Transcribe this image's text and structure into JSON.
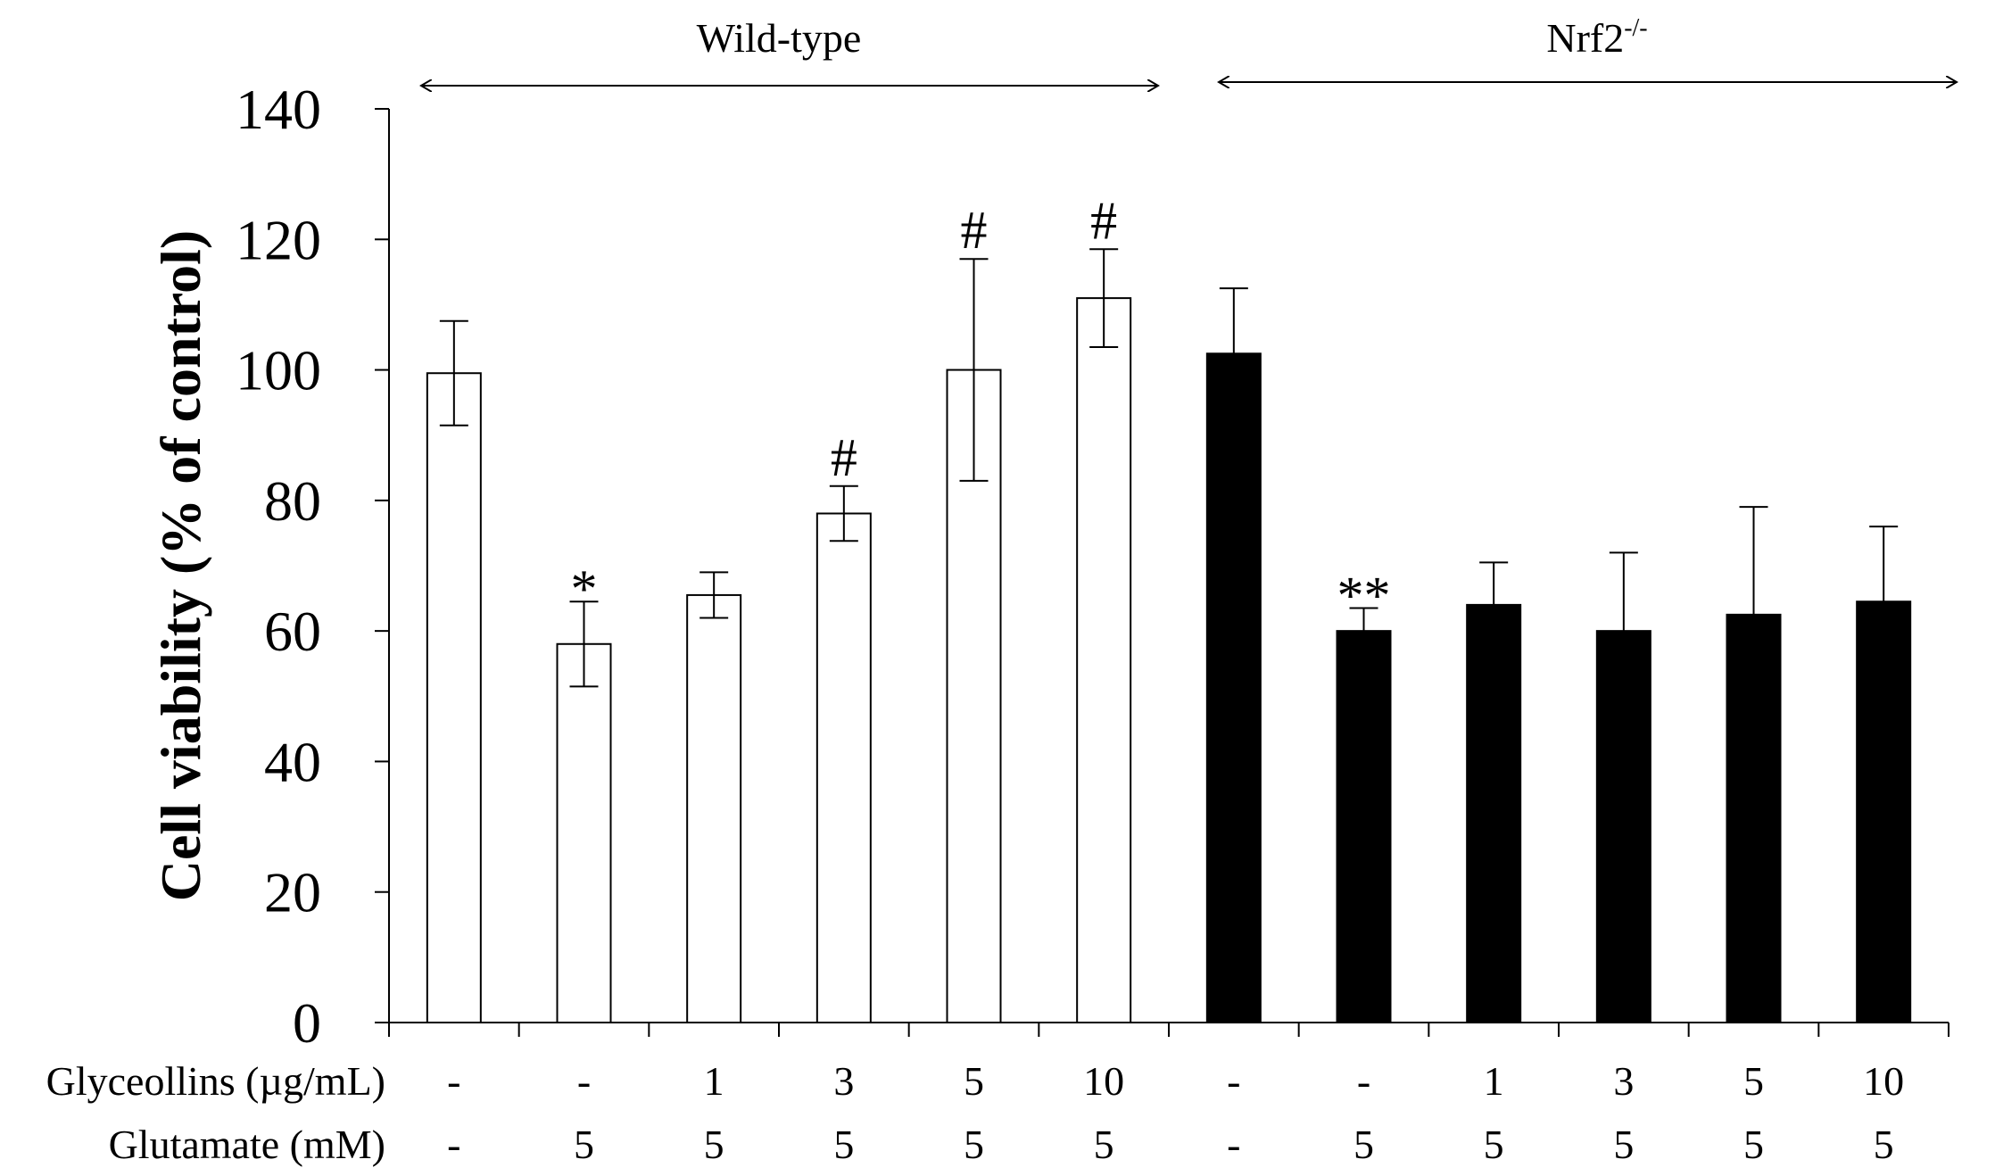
{
  "chart_data": {
    "type": "bar",
    "title": "",
    "xlabel": "",
    "ylabel": "Cell viability (% of control)",
    "ylim": [
      0,
      140
    ],
    "yticks": [
      0,
      20,
      40,
      60,
      80,
      100,
      120,
      140
    ],
    "grid": false,
    "groups": [
      {
        "name": "Wild-type",
        "fill": "#ffffff",
        "start": 0,
        "end": 5
      },
      {
        "name": "Nrf2",
        "superscript": "-/-",
        "fill": "#000000",
        "start": 6,
        "end": 11
      }
    ],
    "row_labels": [
      "Glyceollins  (µg/mL)",
      "Glutamate  (mM)"
    ],
    "glyceollins": [
      "-",
      "-",
      "1",
      "3",
      "5",
      "10",
      "-",
      "-",
      "1",
      "3",
      "5",
      "10"
    ],
    "glutamate": [
      "-",
      "5",
      "5",
      "5",
      "5",
      "5",
      "-",
      "5",
      "5",
      "5",
      "5",
      "5"
    ],
    "values": [
      99.5,
      58,
      65.5,
      78,
      100,
      111,
      102.5,
      60,
      64,
      60,
      62.5,
      64.5
    ],
    "errors": [
      8,
      6.5,
      3.5,
      4.2,
      17,
      7.5,
      10,
      3.5,
      6.5,
      12,
      16.5,
      11.5
    ],
    "significance": [
      "",
      "*",
      "",
      "#",
      "#",
      "#",
      "",
      "**",
      "",
      "",
      "",
      ""
    ]
  }
}
